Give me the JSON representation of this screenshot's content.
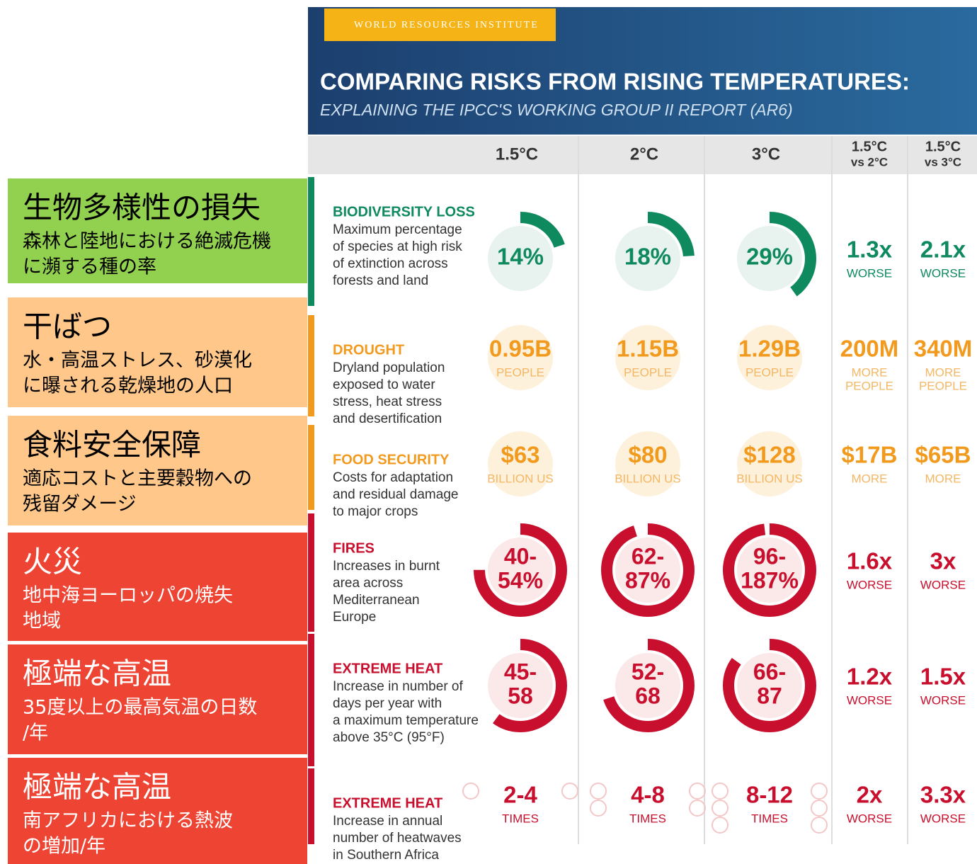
{
  "sidebar": [
    {
      "title": "生物多様性の損失",
      "subtitle": [
        "森林と陸地における絶滅危機",
        "に瀕する種の率"
      ]
    },
    {
      "title": "干ばつ",
      "subtitle": [
        "水・高温ストレス、砂漠化",
        "に曝される乾燥地の人口"
      ]
    },
    {
      "title": "食料安全保障",
      "subtitle": [
        "適応コストと主要穀物への",
        "残留ダメージ"
      ]
    },
    {
      "title": "火災",
      "subtitle": [
        "地中海ヨーロッパの焼失",
        "地域"
      ]
    },
    {
      "title": "極端な高温",
      "subtitle": [
        "35度以上の最高気温の日数",
        "/年"
      ]
    },
    {
      "title": "極端な高温",
      "subtitle": [
        "南アフリカにおける熱波",
        "の増加/年"
      ]
    }
  ],
  "header": {
    "logo": "WORLD RESOURCES INSTITUTE",
    "title": "COMPARING RISKS FROM RISING TEMPERATURES:",
    "subtitle": "EXPLAINING THE IPCC'S WORKING GROUP II REPORT (AR6)"
  },
  "columns": [
    [
      "1.5°C"
    ],
    [
      "2°C"
    ],
    [
      "3°C"
    ],
    [
      "1.5°C",
      "vs 2°C"
    ],
    [
      "1.5°C",
      "vs 3°C"
    ]
  ],
  "rows": [
    {
      "title": "BIODIVERSITY LOSS",
      "description": [
        "Maximum percentage",
        "of species at high risk",
        "of extinction across",
        "forests and land"
      ],
      "cells": [
        {
          "value": [
            "14%"
          ],
          "unit": []
        },
        {
          "value": [
            "18%"
          ],
          "unit": []
        },
        {
          "value": [
            "29%"
          ],
          "unit": []
        },
        {
          "value": [
            "1.3x"
          ],
          "unit": [
            "WORSE"
          ]
        },
        {
          "value": [
            "2.1x"
          ],
          "unit": [
            "WORSE"
          ]
        }
      ]
    },
    {
      "title": "DROUGHT",
      "description": [
        "Dryland population",
        "exposed to water",
        "stress, heat stress",
        "and desertification"
      ],
      "cells": [
        {
          "value": [
            "0.95B"
          ],
          "unit": [
            "PEOPLE"
          ]
        },
        {
          "value": [
            "1.15B"
          ],
          "unit": [
            "PEOPLE"
          ]
        },
        {
          "value": [
            "1.29B"
          ],
          "unit": [
            "PEOPLE"
          ]
        },
        {
          "value": [
            "200M"
          ],
          "unit": [
            "MORE",
            "PEOPLE"
          ]
        },
        {
          "value": [
            "340M"
          ],
          "unit": [
            "MORE",
            "PEOPLE"
          ]
        }
      ]
    },
    {
      "title": "FOOD SECURITY",
      "description": [
        "Costs for adaptation",
        "and residual damage",
        "to major crops"
      ],
      "cells": [
        {
          "value": [
            "$63"
          ],
          "unit": [
            "BILLION US"
          ]
        },
        {
          "value": [
            "$80"
          ],
          "unit": [
            "BILLION US"
          ]
        },
        {
          "value": [
            "$128"
          ],
          "unit": [
            "BILLION US"
          ]
        },
        {
          "value": [
            "$17B"
          ],
          "unit": [
            "MORE"
          ]
        },
        {
          "value": [
            "$65B"
          ],
          "unit": [
            "MORE"
          ]
        }
      ]
    },
    {
      "title": "FIRES",
      "description": [
        "Increases in burnt",
        "area across",
        "Mediterranean",
        "Europe"
      ],
      "cells": [
        {
          "value": [
            "40-",
            "54%"
          ],
          "unit": []
        },
        {
          "value": [
            "62-",
            "87%"
          ],
          "unit": []
        },
        {
          "value": [
            "96-",
            "187%"
          ],
          "unit": []
        },
        {
          "value": [
            "1.6x"
          ],
          "unit": [
            "WORSE"
          ]
        },
        {
          "value": [
            "3x"
          ],
          "unit": [
            "WORSE"
          ]
        }
      ]
    },
    {
      "title": "EXTREME HEAT",
      "description": [
        "Increase in number of",
        "days per year with",
        "a maximum temperature",
        "above 35°C (95°F)"
      ],
      "cells": [
        {
          "value": [
            "45-",
            "58"
          ],
          "unit": []
        },
        {
          "value": [
            "52-",
            "68"
          ],
          "unit": []
        },
        {
          "value": [
            "66-",
            "87"
          ],
          "unit": []
        },
        {
          "value": [
            "1.2x"
          ],
          "unit": [
            "WORSE"
          ]
        },
        {
          "value": [
            "1.5x"
          ],
          "unit": [
            "WORSE"
          ]
        }
      ]
    },
    {
      "title": "EXTREME HEAT",
      "description": [
        "Increase in annual",
        "number of heatwaves",
        "in Southern Africa"
      ],
      "cells": [
        {
          "value": [
            "2-4"
          ],
          "unit": [
            "TIMES"
          ]
        },
        {
          "value": [
            "4-8"
          ],
          "unit": [
            "TIMES"
          ]
        },
        {
          "value": [
            "8-12"
          ],
          "unit": [
            "TIMES"
          ]
        },
        {
          "value": [
            "2x"
          ],
          "unit": [
            "WORSE"
          ]
        },
        {
          "value": [
            "3.3x"
          ],
          "unit": [
            "WORSE"
          ]
        }
      ]
    }
  ]
}
